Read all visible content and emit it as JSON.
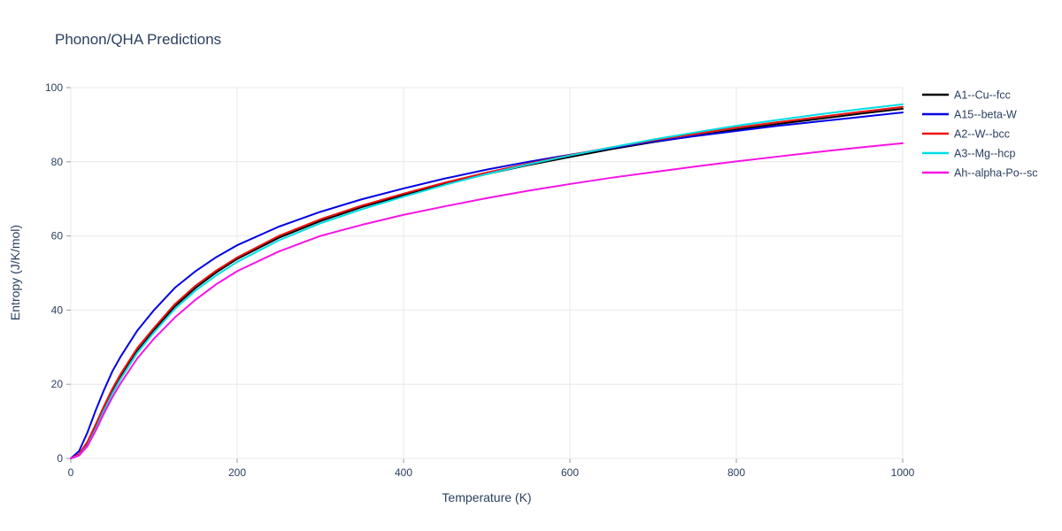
{
  "title": "Phonon/QHA Predictions",
  "chart_data": {
    "type": "line",
    "title": "Phonon/QHA Predictions",
    "xlabel": "Temperature (K)",
    "ylabel": "Entropy (J/K/mol)",
    "xlim": [
      0,
      1000
    ],
    "ylim": [
      0,
      100
    ],
    "xticks": [
      0,
      200,
      400,
      600,
      800,
      1000
    ],
    "yticks": [
      0,
      20,
      40,
      60,
      80,
      100
    ],
    "grid": true,
    "legend_position": "right-top",
    "x": [
      0,
      10,
      20,
      30,
      40,
      50,
      60,
      80,
      100,
      125,
      150,
      175,
      200,
      250,
      300,
      350,
      400,
      450,
      500,
      550,
      600,
      650,
      700,
      750,
      800,
      850,
      900,
      950,
      1000
    ],
    "series": [
      {
        "name": "A1--Cu--fcc",
        "color": "#000000",
        "values": [
          0,
          1,
          4,
          8.5,
          13.5,
          18,
          22,
          29,
          34.5,
          41,
          46,
          50.2,
          53.8,
          59.5,
          64,
          67.8,
          71,
          74,
          76.7,
          79.1,
          81.3,
          83.4,
          85.3,
          87,
          88.7,
          90.2,
          91.6,
          93,
          94.3
        ]
      },
      {
        "name": "A15--beta-W",
        "color": "#0000e6",
        "values": [
          0,
          2,
          7,
          13,
          18.5,
          23.5,
          27.5,
          34.5,
          40,
          46,
          50.5,
          54.3,
          57.5,
          62.5,
          66.5,
          69.9,
          72.8,
          75.5,
          77.9,
          80,
          81.9,
          83.7,
          85.4,
          86.9,
          88.3,
          89.7,
          90.9,
          92.1,
          93.3
        ]
      },
      {
        "name": "A2--W--bcc",
        "color": "#ee1111",
        "values": [
          0,
          1.2,
          4.5,
          9.2,
          14.2,
          18.8,
          22.8,
          29.8,
          35.2,
          41.6,
          46.6,
          50.7,
          54.2,
          60,
          64.5,
          68.2,
          71.4,
          74.4,
          77.1,
          79.5,
          81.8,
          83.9,
          85.8,
          87.5,
          89.2,
          90.7,
          92.1,
          93.5,
          94.8
        ]
      },
      {
        "name": "A3--Mg--hcp",
        "color": "#00dde6",
        "values": [
          0,
          0.8,
          3.5,
          8,
          13,
          17.5,
          21.5,
          28.5,
          34,
          40.3,
          45.3,
          49.4,
          53,
          58.8,
          63.4,
          67.2,
          70.6,
          73.8,
          76.7,
          79.3,
          81.7,
          83.9,
          86,
          87.9,
          89.7,
          91.3,
          92.8,
          94.2,
          95.5
        ]
      },
      {
        "name": "Ah--alpha-Po--sc",
        "color": "#f614e4",
        "values": [
          0,
          0.8,
          3.3,
          7.5,
          12.2,
          16.5,
          20.3,
          27,
          32.3,
          38,
          42.8,
          47,
          50.5,
          55.8,
          60,
          63,
          65.7,
          68,
          70.2,
          72.2,
          74,
          75.7,
          77.2,
          78.7,
          80.1,
          81.4,
          82.7,
          83.9,
          85
        ]
      }
    ],
    "colors": {
      "grid": "#e8e8e8",
      "tick": "#9a9a9a",
      "text": "#2a3f5f",
      "background": "#ffffff"
    }
  }
}
